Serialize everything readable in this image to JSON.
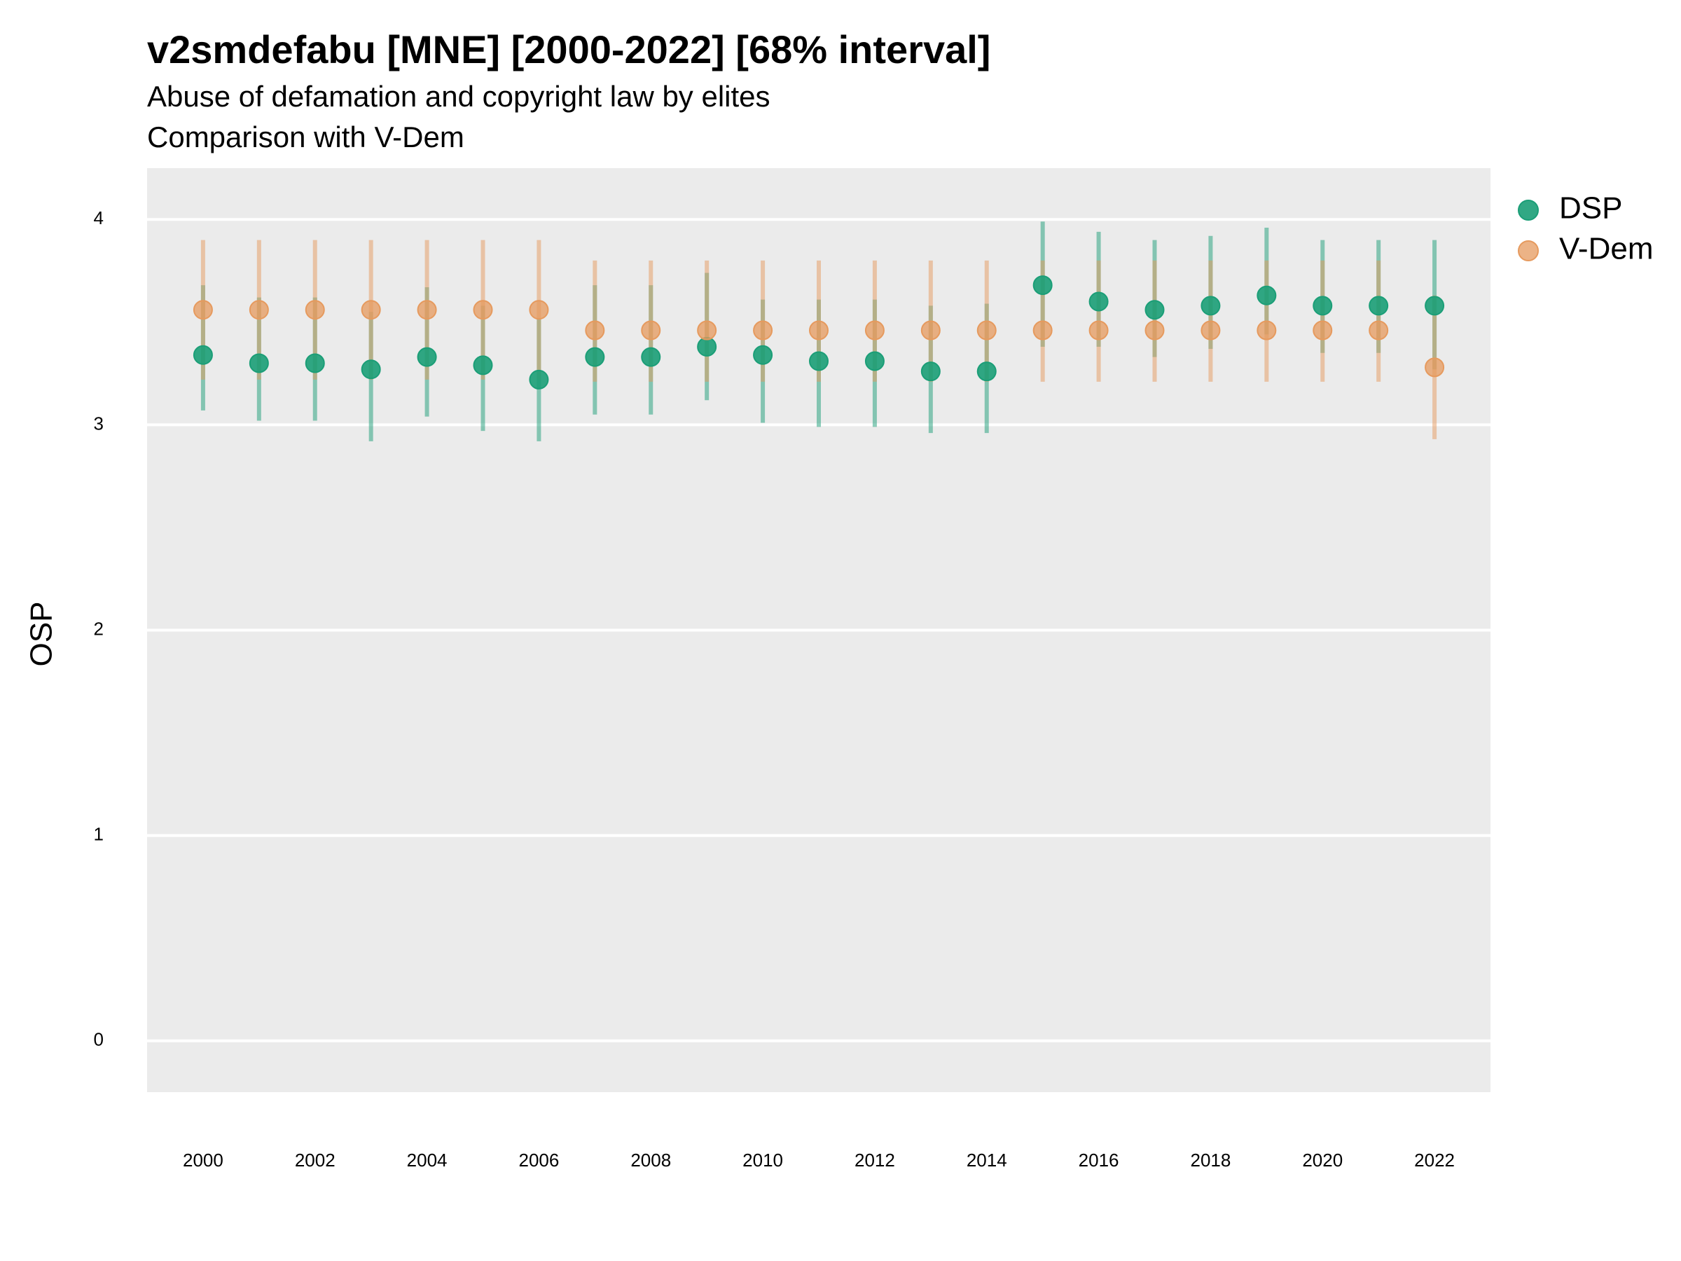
{
  "chart_data": {
    "type": "errorbar-scatter",
    "title": "v2smdefabu [MNE] [2000-2022] [68% interval]",
    "subtitle": [
      "Abuse of defamation and copyright law by elites",
      "Comparison with V-Dem"
    ],
    "y_label": "OSP",
    "x": [
      2000,
      2001,
      2002,
      2003,
      2004,
      2005,
      2006,
      2007,
      2008,
      2009,
      2010,
      2011,
      2012,
      2013,
      2014,
      2015,
      2016,
      2017,
      2018,
      2019,
      2020,
      2021,
      2022
    ],
    "xlim": [
      1999,
      2023
    ],
    "xticks": [
      2000,
      2002,
      2004,
      2006,
      2008,
      2010,
      2012,
      2014,
      2016,
      2018,
      2020,
      2022
    ],
    "ylim": [
      -0.25,
      4.25
    ],
    "yticks": [
      0,
      1,
      2,
      3,
      4
    ],
    "grid": true,
    "legend": "right",
    "series": [
      {
        "name": "DSP",
        "color": "#1b9e77",
        "values": [
          3.34,
          3.3,
          3.3,
          3.27,
          3.33,
          3.29,
          3.22,
          3.33,
          3.33,
          3.38,
          3.34,
          3.31,
          3.31,
          3.26,
          3.26,
          3.68,
          3.6,
          3.56,
          3.58,
          3.63,
          3.58,
          3.58,
          3.58
        ],
        "lower": [
          3.07,
          3.02,
          3.02,
          2.92,
          3.04,
          2.97,
          2.92,
          3.05,
          3.05,
          3.12,
          3.01,
          2.99,
          2.99,
          2.96,
          2.96,
          3.38,
          3.38,
          3.33,
          3.37,
          3.44,
          3.35,
          3.35,
          3.27
        ],
        "upper": [
          3.68,
          3.62,
          3.62,
          3.55,
          3.67,
          3.58,
          3.52,
          3.68,
          3.68,
          3.74,
          3.61,
          3.61,
          3.61,
          3.58,
          3.59,
          3.99,
          3.94,
          3.9,
          3.92,
          3.96,
          3.9,
          3.9,
          3.9
        ]
      },
      {
        "name": "V-Dem",
        "color": "#e69a5e",
        "values": [
          3.56,
          3.56,
          3.56,
          3.56,
          3.56,
          3.56,
          3.56,
          3.46,
          3.46,
          3.46,
          3.46,
          3.46,
          3.46,
          3.46,
          3.46,
          3.46,
          3.46,
          3.46,
          3.46,
          3.46,
          3.46,
          3.46,
          3.28
        ],
        "lower": [
          3.22,
          3.22,
          3.22,
          3.22,
          3.22,
          3.22,
          3.22,
          3.21,
          3.21,
          3.21,
          3.21,
          3.21,
          3.21,
          3.21,
          3.21,
          3.21,
          3.21,
          3.21,
          3.21,
          3.21,
          3.21,
          3.21,
          2.93
        ],
        "upper": [
          3.9,
          3.9,
          3.9,
          3.9,
          3.9,
          3.9,
          3.9,
          3.8,
          3.8,
          3.8,
          3.8,
          3.8,
          3.8,
          3.8,
          3.8,
          3.8,
          3.8,
          3.8,
          3.8,
          3.8,
          3.8,
          3.8,
          3.63
        ]
      }
    ]
  }
}
